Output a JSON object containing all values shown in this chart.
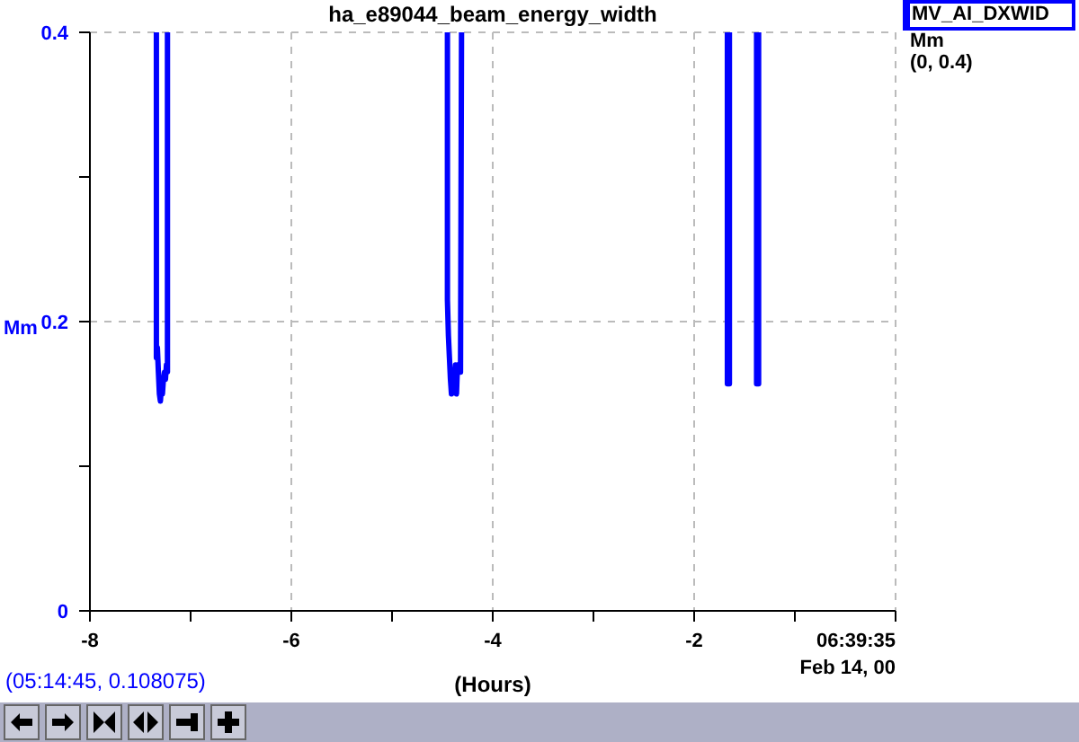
{
  "chart_data": {
    "type": "line",
    "title": "ha_e89044_beam_energy_width",
    "xlabel": "(Hours)",
    "ylabel": "Mm",
    "annotations": [
      "Mm",
      "(0, 0.4)",
      "(05:14:45, 0.108075)"
    ],
    "series": [
      {
        "name": "MV_AI_DXWID",
        "color": "#0000ff",
        "x": [
          -7.34,
          -7.34,
          -7.33,
          -7.32,
          -7.31,
          -7.3,
          -7.29,
          -7.28,
          -7.27,
          -7.26,
          -7.25,
          -7.24,
          -7.23,
          -7.23,
          -6,
          -4.45,
          -4.45,
          -4.44,
          -4.43,
          -4.42,
          -4.41,
          -4.4,
          -4.39,
          -4.38,
          -4.37,
          -4.36,
          -4.35,
          -4.33,
          -4.32,
          -4.31,
          -3,
          -1.67,
          -1.67,
          -1.65,
          -1.65,
          -1.5,
          -1.38,
          -1.38,
          -1.36,
          -1.36
        ],
        "values": [
          0.4,
          0.175,
          0.182,
          0.165,
          0.15,
          0.145,
          0.155,
          0.15,
          0.16,
          0.165,
          0.16,
          0.17,
          0.165,
          0.4,
          null,
          0.4,
          0.215,
          0.19,
          0.175,
          0.16,
          0.15,
          0.165,
          0.155,
          0.16,
          0.17,
          0.15,
          0.17,
          0.165,
          0.165,
          0.4,
          null,
          0.4,
          0.157,
          0.157,
          0.4,
          null,
          0.4,
          0.157,
          0.157,
          0.4
        ]
      }
    ],
    "xlim": [
      -8,
      0
    ],
    "xticks": [
      -8,
      {
        "value": -7,
        "label": null
      },
      -6,
      {
        "value": -5,
        "label": null
      },
      -4,
      {
        "value": -3,
        "label": null
      },
      -2,
      {
        "value": -1,
        "label": null
      },
      {
        "value": 0,
        "label": "06:39:35\nFeb 14, 00"
      }
    ],
    "ylim": [
      0,
      0.4
    ],
    "yticks": [
      0,
      {
        "value": 0.1,
        "label": null
      },
      0.2,
      {
        "value": 0.3,
        "label": null
      },
      0.4
    ],
    "grid": true,
    "legend": "top right",
    "marker": "none",
    "line_style": "solid"
  }
}
